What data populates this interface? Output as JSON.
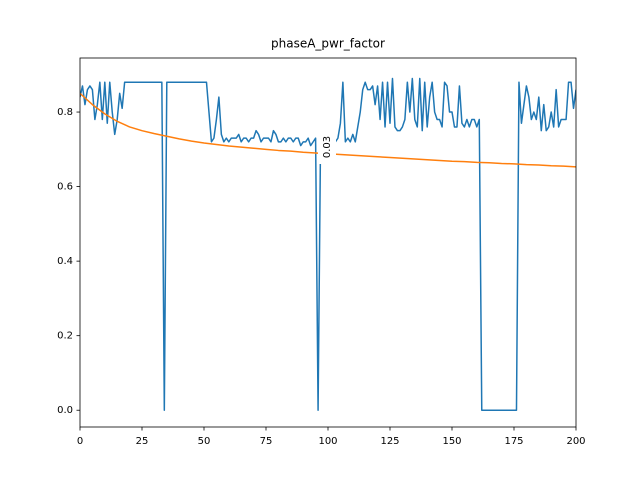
{
  "chart_data": {
    "type": "line",
    "title": "phaseA_pwr_factor",
    "annotations": [
      "0.03"
    ],
    "xlim": [
      0,
      200
    ],
    "xticks": [
      0,
      25,
      50,
      75,
      100,
      125,
      150,
      175,
      200
    ],
    "ylim": [
      -0.045,
      0.945
    ],
    "yticks": [
      {
        "value": 0,
        "label": "0.0"
      },
      0.2,
      0.4,
      0.6,
      0.8
    ],
    "series": [
      {
        "color": "#1f77b4",
        "x": [
          0,
          1,
          2,
          3,
          4,
          5,
          6,
          7,
          8,
          9,
          10,
          11,
          12,
          13,
          14,
          15,
          16,
          17,
          18,
          19,
          20,
          21,
          22,
          23,
          24,
          25,
          26,
          27,
          28,
          29,
          30,
          31,
          32,
          33,
          34,
          35,
          36,
          37,
          38,
          39,
          40,
          41,
          42,
          43,
          44,
          45,
          46,
          47,
          48,
          49,
          50,
          51,
          52,
          53,
          54,
          55,
          56,
          57,
          58,
          59,
          60,
          61,
          62,
          63,
          64,
          65,
          66,
          67,
          68,
          69,
          70,
          71,
          72,
          73,
          74,
          75,
          76,
          77,
          78,
          79,
          80,
          81,
          82,
          83,
          84,
          85,
          86,
          87,
          88,
          89,
          90,
          91,
          92,
          93,
          94,
          95,
          96,
          97,
          98,
          99,
          100,
          101,
          102,
          103,
          104,
          105,
          106,
          107,
          108,
          109,
          110,
          111,
          112,
          113,
          114,
          115,
          116,
          117,
          118,
          119,
          120,
          121,
          122,
          123,
          124,
          125,
          126,
          127,
          128,
          129,
          130,
          131,
          132,
          133,
          134,
          135,
          136,
          137,
          138,
          139,
          140,
          141,
          142,
          143,
          144,
          145,
          146,
          147,
          148,
          149,
          150,
          151,
          152,
          153,
          154,
          155,
          156,
          157,
          158,
          159,
          160,
          161,
          162,
          163,
          164,
          165,
          166,
          167,
          168,
          169,
          170,
          171,
          172,
          173,
          174,
          175,
          176,
          177,
          178,
          179,
          180,
          181,
          182,
          183,
          184,
          185,
          186,
          187,
          188,
          189,
          190,
          191,
          192,
          193,
          194,
          195,
          196,
          197,
          198,
          199,
          200
        ],
        "values": [
          0.84,
          0.87,
          0.82,
          0.86,
          0.87,
          0.86,
          0.78,
          0.82,
          0.88,
          0.78,
          0.88,
          0.77,
          0.88,
          0.8,
          0.74,
          0.78,
          0.85,
          0.81,
          0.88,
          0.88,
          0.88,
          0.88,
          0.88,
          0.88,
          0.88,
          0.88,
          0.88,
          0.88,
          0.88,
          0.88,
          0.88,
          0.88,
          0.88,
          0.88,
          0,
          0.88,
          0.88,
          0.88,
          0.88,
          0.88,
          0.88,
          0.88,
          0.88,
          0.88,
          0.88,
          0.88,
          0.88,
          0.88,
          0.88,
          0.88,
          0.88,
          0.88,
          0.8,
          0.72,
          0.73,
          0.78,
          0.84,
          0.74,
          0.72,
          0.73,
          0.72,
          0.73,
          0.73,
          0.73,
          0.74,
          0.72,
          0.73,
          0.73,
          0.72,
          0.73,
          0.73,
          0.75,
          0.74,
          0.72,
          0.73,
          0.73,
          0.73,
          0.72,
          0.75,
          0.74,
          0.72,
          0.72,
          0.73,
          0.72,
          0.73,
          0.73,
          0.72,
          0.73,
          0.73,
          0.71,
          0.72,
          0.72,
          0.73,
          0.71,
          0.72,
          0.73,
          0,
          0.73,
          0.72,
          0.73,
          0.72,
          0.74,
          0.73,
          0.72,
          0.73,
          0.77,
          0.88,
          0.72,
          0.73,
          0.72,
          0.74,
          0.72,
          0.76,
          0.8,
          0.86,
          0.88,
          0.86,
          0.86,
          0.87,
          0.82,
          0.87,
          0.78,
          0.88,
          0.76,
          0.88,
          0.77,
          0.89,
          0.76,
          0.75,
          0.75,
          0.76,
          0.78,
          0.88,
          0.8,
          0.89,
          0.78,
          0.76,
          0.89,
          0.75,
          0.88,
          0.76,
          0.84,
          0.88,
          0.8,
          0.78,
          0.78,
          0.76,
          0.88,
          0.87,
          0.8,
          0.8,
          0.76,
          0.76,
          0.87,
          0.77,
          0.76,
          0.78,
          0.76,
          0.78,
          0.78,
          0.76,
          0.78,
          0,
          0,
          0,
          0,
          0,
          0,
          0,
          0,
          0,
          0,
          0,
          0,
          0,
          0,
          0,
          0.88,
          0.77,
          0.82,
          0.87,
          0.84,
          0.78,
          0.8,
          0.78,
          0.84,
          0.75,
          0.82,
          0.75,
          0.76,
          0.8,
          0.76,
          0.86,
          0.76,
          0.78,
          0.78,
          0.78,
          0.88,
          0.88,
          0.81,
          0.86
        ]
      },
      {
        "color": "#ff7f0e",
        "x": [
          0,
          5,
          10,
          15,
          20,
          25,
          30,
          35,
          40,
          45,
          50,
          55,
          60,
          65,
          70,
          75,
          80,
          85,
          90,
          95,
          100,
          105,
          110,
          115,
          120,
          125,
          130,
          135,
          140,
          145,
          150,
          155,
          160,
          165,
          170,
          175,
          180,
          185,
          190,
          195,
          200
        ],
        "values": [
          0.85,
          0.82,
          0.795,
          0.775,
          0.76,
          0.75,
          0.742,
          0.735,
          0.728,
          0.722,
          0.717,
          0.713,
          0.709,
          0.706,
          0.703,
          0.7,
          0.697,
          0.695,
          0.692,
          0.69,
          0.688,
          0.686,
          0.684,
          0.682,
          0.68,
          0.678,
          0.676,
          0.674,
          0.672,
          0.67,
          0.668,
          0.667,
          0.665,
          0.664,
          0.662,
          0.661,
          0.659,
          0.658,
          0.656,
          0.655,
          0.653
        ]
      }
    ]
  }
}
